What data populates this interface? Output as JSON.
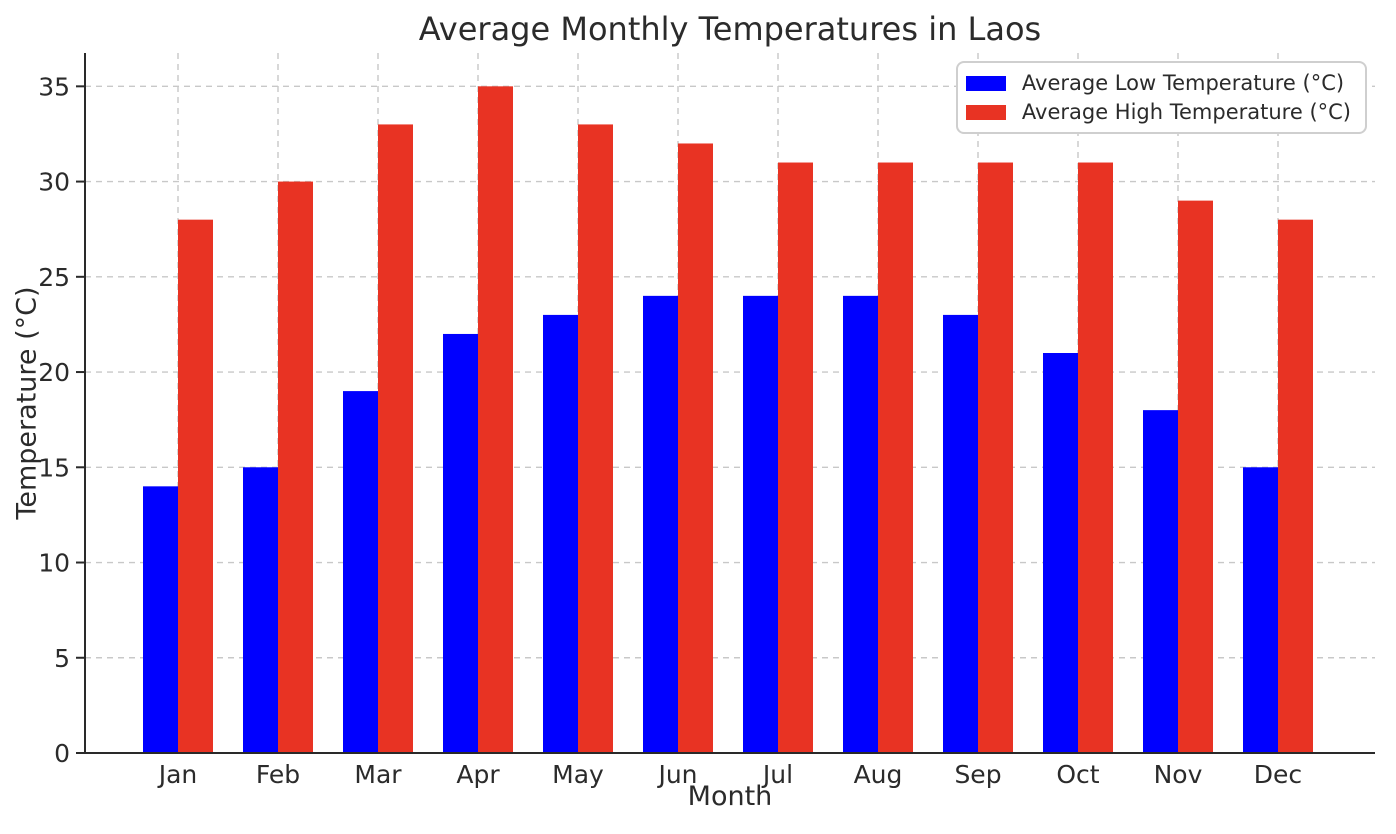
{
  "figure": {
    "title": "Average Monthly Temperatures in Laos",
    "xlabel": "Month",
    "ylabel": "Temperature (°C)"
  },
  "chart_data": {
    "type": "bar",
    "title": "Average Monthly Temperatures in Laos",
    "xlabel": "Month",
    "ylabel": "Temperature (°C)",
    "categories": [
      "Jan",
      "Feb",
      "Mar",
      "Apr",
      "May",
      "Jun",
      "Jul",
      "Aug",
      "Sep",
      "Oct",
      "Nov",
      "Dec"
    ],
    "series": [
      {
        "name": "Average Low Temperature (°C)",
        "color": "#0000ff",
        "values": [
          14,
          15,
          19,
          22,
          23,
          24,
          24,
          24,
          23,
          21,
          18,
          15
        ]
      },
      {
        "name": "Average High Temperature (°C)",
        "color": "#e83323",
        "values": [
          28,
          30,
          33,
          35,
          33,
          32,
          31,
          31,
          31,
          31,
          29,
          28
        ]
      }
    ],
    "yticks": [
      0,
      5,
      10,
      15,
      20,
      25,
      30,
      35
    ],
    "ylim": [
      0,
      36.75
    ],
    "bar_width": 0.35,
    "grid": true,
    "grid_style": "dashed",
    "legend_position": "upper right"
  },
  "style": {
    "grid_color": "#c8c8c8",
    "spine_color": "#2a2a2a",
    "text_color": "#2b2b2b",
    "background": "#ffffff"
  }
}
